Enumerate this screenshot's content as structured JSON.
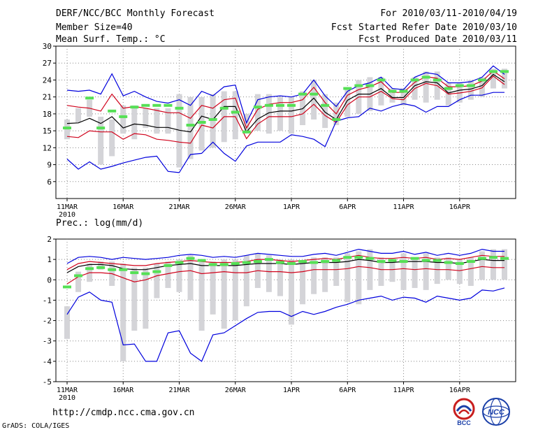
{
  "header": {
    "title": "DERF/NCC/BCC Monthly Forecast",
    "member": "Member Size=40",
    "variable": "Mean Surf. Temp.: °C",
    "period": "For 2010/03/11-2010/04/19",
    "started": "Fcst Started Refer Date 2010/03/10",
    "produced": "Fcst Produced Date 2010/03/11"
  },
  "footer": {
    "url": "http://cmdp.ncc.cma.gov.cn",
    "credit": "GrADS: COLA/IGES",
    "logo_bcc": "BCC",
    "logo_ncc": "NCC"
  },
  "colors": {
    "box": "#d4d4d8",
    "median": "#000000",
    "mid_band": "#d0021b",
    "outer_band": "#0000dd",
    "observed": "#55e055",
    "grid": "#888888"
  },
  "chart_data": [
    {
      "type": "line",
      "title": "Mean Surf. Temp.: °C",
      "ylabel": "°C",
      "ylim": [
        3,
        30
      ],
      "yticks": [
        30,
        27,
        24,
        21,
        18,
        15,
        12,
        9,
        6
      ],
      "x_tick_days": [
        1,
        6,
        11,
        16,
        21,
        26,
        31,
        36
      ],
      "x_tick_labels": [
        "11MAR",
        "16MAR",
        "21MAR",
        "26MAR",
        "1APR",
        "6APR",
        "11APR",
        "16APR"
      ],
      "x_year_label": "2010",
      "days": [
        1,
        2,
        3,
        4,
        5,
        6,
        7,
        8,
        9,
        10,
        11,
        12,
        13,
        14,
        15,
        16,
        17,
        18,
        19,
        20,
        21,
        22,
        23,
        24,
        25,
        26,
        27,
        28,
        29,
        30,
        31,
        32,
        33,
        34,
        35,
        36,
        37,
        38,
        39,
        40
      ],
      "series": [
        {
          "name": "ensemble max",
          "color": "#0000dd",
          "values": [
            22.2,
            22.0,
            22.2,
            21.5,
            25.1,
            21.2,
            22.0,
            21.0,
            20.2,
            19.9,
            20.5,
            19.5,
            22.0,
            21.2,
            22.8,
            23.1,
            16.4,
            20.5,
            21.0,
            21.2,
            21.0,
            21.5,
            24.0,
            21.2,
            19.3,
            22.0,
            23.0,
            23.5,
            24.5,
            22.5,
            22.3,
            24.5,
            25.3,
            25.0,
            23.5,
            23.5,
            23.7,
            24.5,
            26.5,
            25.0
          ]
        },
        {
          "name": "upper band",
          "color": "#d0021b",
          "values": [
            19.5,
            19.2,
            19.0,
            18.5,
            21.5,
            19.0,
            19.3,
            19.0,
            18.6,
            18.2,
            18.2,
            17.2,
            19.5,
            19.0,
            20.5,
            20.8,
            15.5,
            18.8,
            19.7,
            20.0,
            20.0,
            20.5,
            22.7,
            20.0,
            18.0,
            21.3,
            22.3,
            22.8,
            23.7,
            21.8,
            21.8,
            23.6,
            24.6,
            24.3,
            22.8,
            22.8,
            23.0,
            23.8,
            25.6,
            24.2
          ]
        },
        {
          "name": "median",
          "color": "#000000",
          "values": [
            16.3,
            16.4,
            17.2,
            16.3,
            17.5,
            15.5,
            16.2,
            16.0,
            15.6,
            15.6,
            15.1,
            14.8,
            17.6,
            17.0,
            19.3,
            19.3,
            14.8,
            17.1,
            18.2,
            18.5,
            18.5,
            18.9,
            20.8,
            18.3,
            17.0,
            20.4,
            21.5,
            21.5,
            22.5,
            20.9,
            20.9,
            23.0,
            23.7,
            23.5,
            21.7,
            22.2,
            22.4,
            23.0,
            25.0,
            23.7
          ]
        },
        {
          "name": "lower band",
          "color": "#d0021b",
          "values": [
            14.0,
            13.8,
            15.0,
            14.8,
            14.8,
            13.5,
            14.5,
            14.3,
            13.5,
            13.3,
            13.0,
            12.8,
            16.0,
            15.5,
            17.5,
            17.5,
            13.6,
            16.2,
            17.5,
            17.5,
            17.5,
            18.0,
            19.7,
            17.7,
            16.5,
            19.6,
            21.0,
            21.0,
            22.0,
            20.7,
            20.5,
            22.5,
            23.4,
            23.0,
            21.5,
            21.7,
            22.0,
            22.6,
            24.7,
            23.2
          ]
        },
        {
          "name": "ensemble min",
          "color": "#0000dd",
          "values": [
            10.0,
            8.2,
            9.5,
            8.2,
            8.7,
            9.3,
            9.8,
            10.3,
            10.5,
            7.8,
            7.6,
            10.8,
            11.0,
            13.0,
            11.0,
            9.6,
            12.3,
            13.0,
            13.0,
            13.0,
            14.3,
            14.0,
            13.5,
            12.2,
            16.7,
            17.3,
            17.5,
            19.0,
            18.5,
            19.3,
            19.8,
            19.4,
            18.3,
            19.3,
            19.3,
            20.5,
            21.3,
            21.3,
            21.8,
            21.8
          ]
        }
      ],
      "observed": [
        15.5,
        null,
        20.8,
        15.5,
        18.5,
        17.5,
        19.2,
        19.5,
        19.5,
        19.5,
        19.0,
        16.0,
        16.5,
        17.0,
        19.0,
        18.3,
        14.8,
        19.2,
        19.5,
        19.5,
        19.5,
        21.5,
        21.5,
        19.5,
        17.0,
        22.5,
        23.0,
        23.0,
        24.0,
        22.0,
        22.0,
        24.0,
        24.5,
        24.0,
        22.5,
        23.0,
        23.0,
        24.0,
        25.5,
        25.5
      ],
      "box_range": [
        [
          13.5,
          17.0
        ],
        [
          16.5,
          19.0
        ],
        [
          17.5,
          20.5
        ],
        [
          9.0,
          17.5
        ],
        [
          10.5,
          17.0
        ],
        [
          14.5,
          19.5
        ],
        [
          13.5,
          19.5
        ],
        [
          15.5,
          19.0
        ],
        [
          14.5,
          19.0
        ],
        [
          14.5,
          19.0
        ],
        [
          8.5,
          21.5
        ],
        [
          10.0,
          21.0
        ],
        [
          11.5,
          21.0
        ],
        [
          12.0,
          21.5
        ],
        [
          13.0,
          22.0
        ],
        [
          13.5,
          22.0
        ],
        [
          14.5,
          18.0
        ],
        [
          15.0,
          21.5
        ],
        [
          14.5,
          21.5
        ],
        [
          15.0,
          21.0
        ],
        [
          14.5,
          21.0
        ],
        [
          16.0,
          22.0
        ],
        [
          17.0,
          24.0
        ],
        [
          15.5,
          21.5
        ],
        [
          16.0,
          20.0
        ],
        [
          17.5,
          22.5
        ],
        [
          18.0,
          24.0
        ],
        [
          18.5,
          24.5
        ],
        [
          19.5,
          24.5
        ],
        [
          20.0,
          22.5
        ],
        [
          19.5,
          22.5
        ],
        [
          20.5,
          24.5
        ],
        [
          20.0,
          25.5
        ],
        [
          20.5,
          25.5
        ],
        [
          19.5,
          23.5
        ],
        [
          20.0,
          23.5
        ],
        [
          20.5,
          24.0
        ],
        [
          21.0,
          24.5
        ],
        [
          22.5,
          26.0
        ],
        [
          22.5,
          26.0
        ]
      ]
    },
    {
      "type": "line",
      "title": "Prec.: log(mm/d)",
      "ylabel": "log(mm/d)",
      "ylim": [
        -5,
        2
      ],
      "yticks": [
        2,
        1,
        0,
        -1,
        -2,
        -3,
        -4,
        -5
      ],
      "x_tick_days": [
        1,
        6,
        11,
        16,
        21,
        26,
        31,
        36
      ],
      "x_tick_labels": [
        "11MAR",
        "16MAR",
        "21MAR",
        "26MAR",
        "1APR",
        "6APR",
        "11APR",
        "16APR"
      ],
      "x_year_label": "2010",
      "days": [
        1,
        2,
        3,
        4,
        5,
        6,
        7,
        8,
        9,
        10,
        11,
        12,
        13,
        14,
        15,
        16,
        17,
        18,
        19,
        20,
        21,
        22,
        23,
        24,
        25,
        26,
        27,
        28,
        29,
        30,
        31,
        32,
        33,
        34,
        35,
        36,
        37,
        38,
        39,
        40
      ],
      "series": [
        {
          "name": "ensemble max",
          "color": "#0000dd",
          "values": [
            0.8,
            1.1,
            1.15,
            1.1,
            1.0,
            1.1,
            1.05,
            1.0,
            1.05,
            1.1,
            1.2,
            1.25,
            1.2,
            1.1,
            1.15,
            1.1,
            1.2,
            1.3,
            1.25,
            1.2,
            1.15,
            1.15,
            1.25,
            1.3,
            1.2,
            1.35,
            1.5,
            1.4,
            1.3,
            1.3,
            1.4,
            1.25,
            1.35,
            1.2,
            1.3,
            1.2,
            1.3,
            1.5,
            1.4,
            1.4
          ]
        },
        {
          "name": "upper band",
          "color": "#d0021b",
          "values": [
            0.5,
            0.8,
            0.9,
            0.85,
            0.8,
            0.75,
            0.7,
            0.7,
            0.8,
            0.85,
            0.9,
            0.95,
            0.9,
            0.85,
            0.85,
            0.85,
            0.9,
            1.0,
            1.0,
            0.95,
            0.9,
            0.95,
            1.0,
            1.05,
            1.0,
            1.1,
            1.2,
            1.1,
            1.05,
            1.05,
            1.1,
            1.05,
            1.1,
            1.0,
            1.05,
            1.0,
            1.1,
            1.2,
            1.15,
            1.15
          ]
        },
        {
          "name": "median",
          "color": "#000000",
          "values": [
            0.35,
            0.65,
            0.75,
            0.75,
            0.7,
            0.55,
            0.5,
            0.5,
            0.6,
            0.7,
            0.75,
            0.8,
            0.7,
            0.7,
            0.7,
            0.7,
            0.75,
            0.8,
            0.8,
            0.8,
            0.75,
            0.8,
            0.85,
            0.85,
            0.85,
            0.9,
            1.0,
            0.95,
            0.85,
            0.85,
            0.9,
            0.9,
            0.9,
            0.85,
            0.85,
            0.8,
            0.9,
            1.0,
            0.95,
            0.95
          ]
        },
        {
          "name": "lower band",
          "color": "#d0021b",
          "values": [
            -0.2,
            0.15,
            0.35,
            0.35,
            0.3,
            0.1,
            -0.1,
            0.0,
            0.2,
            0.3,
            0.4,
            0.45,
            0.3,
            0.35,
            0.4,
            0.35,
            0.35,
            0.45,
            0.4,
            0.4,
            0.35,
            0.4,
            0.5,
            0.5,
            0.5,
            0.55,
            0.65,
            0.6,
            0.5,
            0.5,
            0.55,
            0.5,
            0.55,
            0.5,
            0.5,
            0.45,
            0.55,
            0.65,
            0.6,
            0.6
          ]
        },
        {
          "name": "ensemble min",
          "color": "#0000dd",
          "values": [
            -1.7,
            -0.85,
            -0.6,
            -1.0,
            -1.1,
            -3.2,
            -3.15,
            -4.0,
            -4.0,
            -2.6,
            -2.5,
            -3.6,
            -4.0,
            -2.7,
            -2.6,
            -2.25,
            -1.9,
            -1.6,
            -1.55,
            -1.55,
            -1.8,
            -1.55,
            -1.7,
            -1.55,
            -1.35,
            -1.2,
            -1.0,
            -0.9,
            -0.8,
            -1.0,
            -0.85,
            -0.9,
            -1.1,
            -0.8,
            -0.9,
            -1.0,
            -0.9,
            -0.5,
            -0.55,
            -0.4
          ]
        }
      ],
      "observed": [
        -0.35,
        0.2,
        0.55,
        0.6,
        0.5,
        0.5,
        0.35,
        0.3,
        0.4,
        0.7,
        0.85,
        1.05,
        0.95,
        0.75,
        0.75,
        0.8,
        0.85,
        0.9,
        1.0,
        0.85,
        0.8,
        0.9,
        0.85,
        0.9,
        0.95,
        1.1,
        1.1,
        1.05,
        0.9,
        0.95,
        0.9,
        1.05,
        0.95,
        0.95,
        0.85,
        0.8,
        0.9,
        1.05,
        1.1,
        1.05
      ],
      "box_range": [
        [
          -1.3,
          -2.9
        ],
        [
          -0.6,
          0.4
        ],
        [
          -0.1,
          0.8
        ],
        [
          0.5,
          0.9
        ],
        [
          -0.3,
          0.9
        ],
        [
          -4.0,
          0.8
        ],
        [
          -2.5,
          0.6
        ],
        [
          -2.4,
          0.6
        ],
        [
          -0.9,
          0.8
        ],
        [
          -0.4,
          0.9
        ],
        [
          -0.6,
          1.0
        ],
        [
          -1.0,
          1.2
        ],
        [
          -2.5,
          1.0
        ],
        [
          -1.7,
          0.9
        ],
        [
          -2.4,
          1.0
        ],
        [
          -2.0,
          1.0
        ],
        [
          -1.3,
          1.2
        ],
        [
          -0.4,
          1.3
        ],
        [
          -0.6,
          1.2
        ],
        [
          -0.8,
          1.0
        ],
        [
          -2.2,
          1.0
        ],
        [
          -1.2,
          0.9
        ],
        [
          -0.7,
          1.1
        ],
        [
          -0.6,
          1.1
        ],
        [
          -0.3,
          1.1
        ],
        [
          -1.1,
          1.3
        ],
        [
          -1.2,
          1.4
        ],
        [
          -0.5,
          1.5
        ],
        [
          -0.3,
          1.1
        ],
        [
          -0.1,
          1.0
        ],
        [
          -0.5,
          1.3
        ],
        [
          -0.4,
          1.1
        ],
        [
          -0.5,
          1.3
        ],
        [
          -0.2,
          1.1
        ],
        [
          0.0,
          1.1
        ],
        [
          -0.2,
          1.0
        ],
        [
          -0.3,
          1.1
        ],
        [
          0.0,
          1.4
        ],
        [
          0.0,
          1.5
        ],
        [
          0.0,
          1.5
        ]
      ]
    }
  ]
}
